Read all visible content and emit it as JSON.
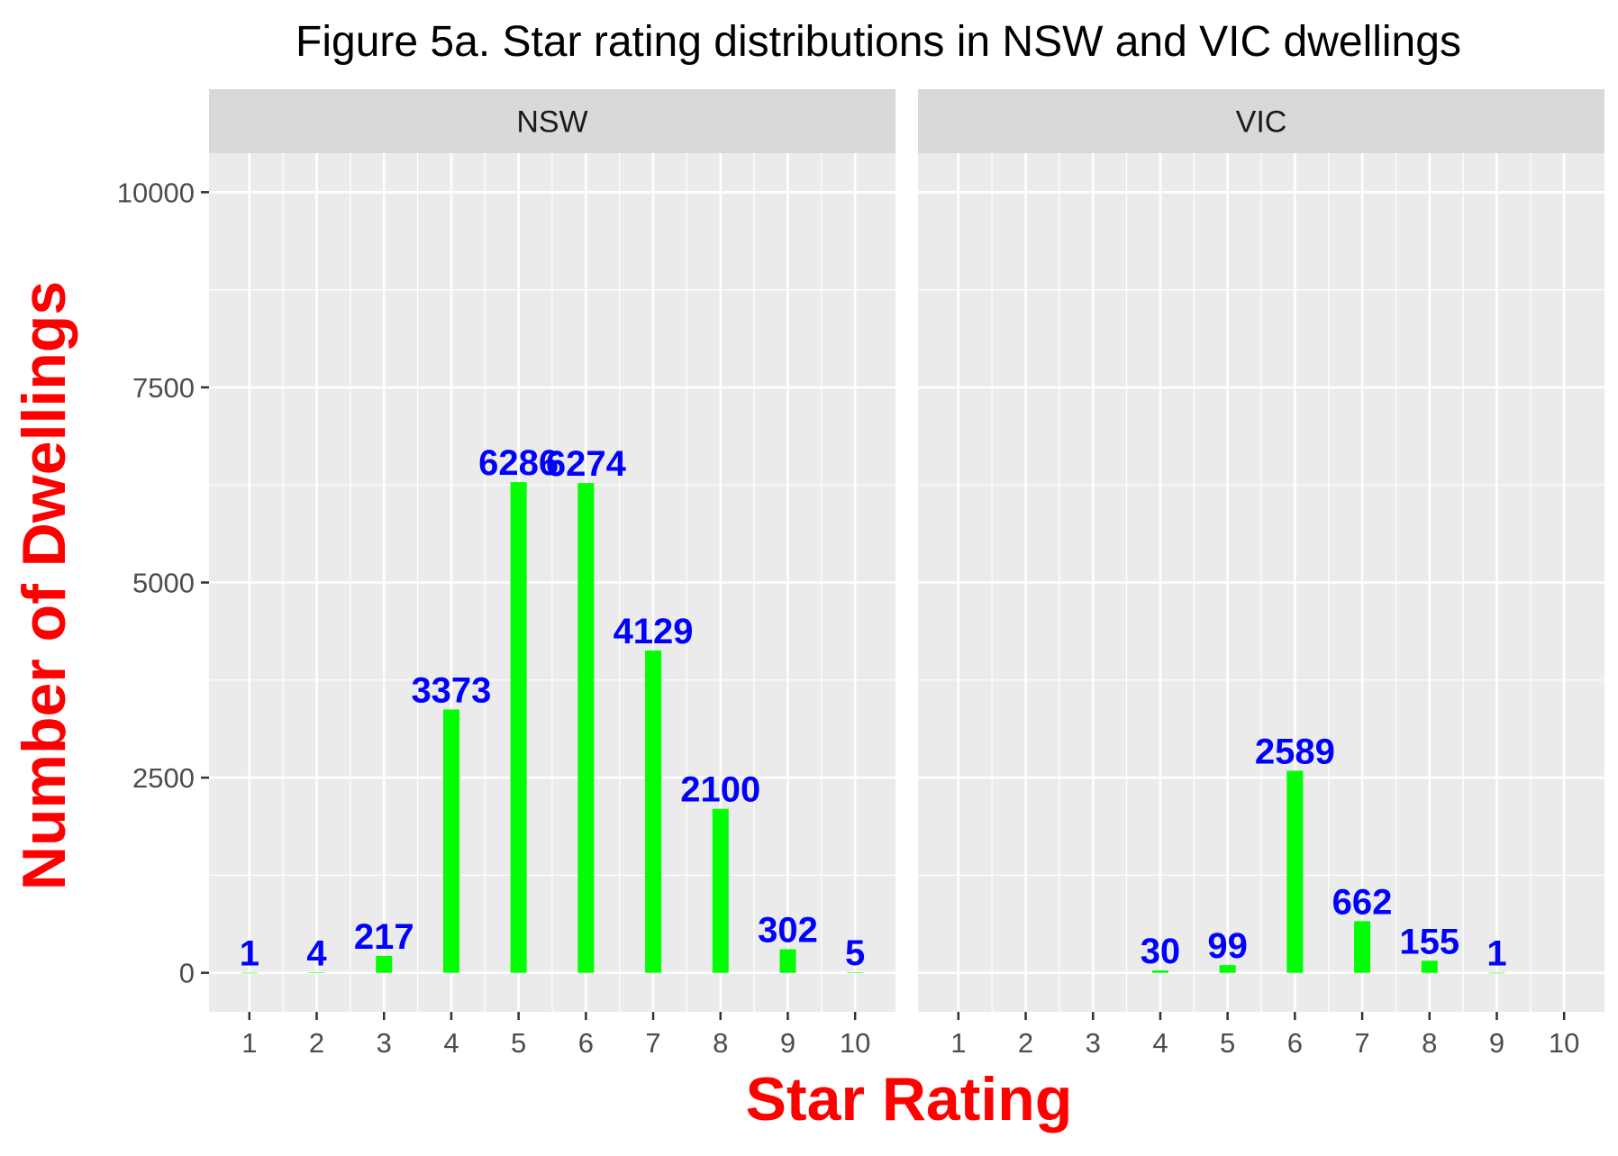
{
  "chart_data": {
    "type": "bar",
    "title": "Figure 5a. Star rating distributions in NSW and VIC dwellings",
    "xlabel": "Star Rating",
    "ylabel": "Number of Dwellings",
    "categories": [
      "1",
      "2",
      "3",
      "4",
      "5",
      "6",
      "7",
      "8",
      "9",
      "10"
    ],
    "y_ticks": [
      "0",
      "2500",
      "5000",
      "7500",
      "10000"
    ],
    "ylim": [
      -500,
      10500
    ],
    "grid": true,
    "legend": "none",
    "colors": {
      "bar": "#00ff00",
      "label": "#0000ff",
      "axis_title": "#ff0000",
      "panel_bg": "#ebebeb",
      "strip_bg": "#d9d9d9",
      "grid": "#ffffff",
      "tick_text": "#4d4d4d"
    },
    "facets": [
      {
        "name": "NSW",
        "values": [
          1,
          4,
          217,
          3373,
          6286,
          6274,
          4129,
          2100,
          302,
          5
        ],
        "labels": [
          "1",
          "4",
          "217",
          "3373",
          "6286",
          "6274",
          "4129",
          "2100",
          "302",
          "5"
        ]
      },
      {
        "name": "VIC",
        "values": [
          null,
          null,
          null,
          30,
          99,
          2589,
          662,
          155,
          1,
          null
        ],
        "labels": [
          "",
          "",
          "",
          "30",
          "99",
          "2589",
          "662",
          "155",
          "1",
          ""
        ]
      }
    ]
  }
}
